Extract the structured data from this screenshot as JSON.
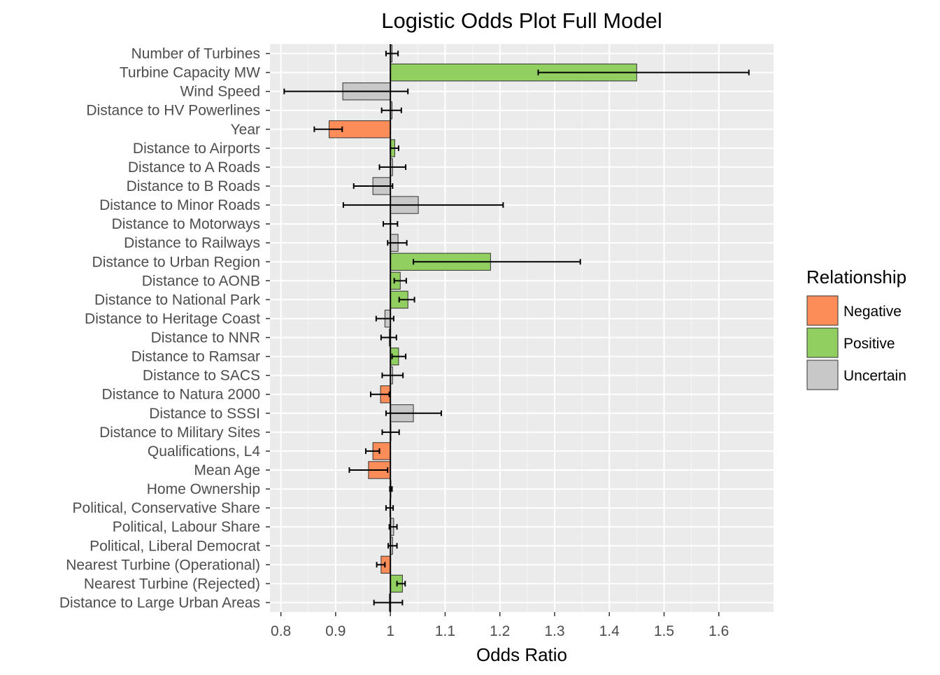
{
  "chart_data": {
    "type": "bar",
    "title": "Logistic Odds Plot Full Model",
    "xlabel": "Odds Ratio",
    "ylabel": "",
    "xlim": [
      0.78,
      1.7
    ],
    "xticks": [
      "0.8",
      "0.9",
      "1",
      "1.1",
      "1.2",
      "1.3",
      "1.4",
      "1.5",
      "1.6"
    ],
    "xtick_values": [
      0.8,
      0.9,
      1.0,
      1.1,
      1.2,
      1.3,
      1.4,
      1.5,
      1.6
    ],
    "baseline": 1.0,
    "grid": true,
    "legend": {
      "title": "Relationship",
      "position": "right",
      "entries": [
        {
          "label": "Negative",
          "color": "#fc8d59"
        },
        {
          "label": "Positive",
          "color": "#91cf60"
        },
        {
          "label": "Uncertain",
          "color": "#c8c8c8"
        }
      ]
    },
    "categories": [
      "Number of Turbines",
      "Turbine Capacity MW",
      "Wind Speed",
      "Distance to HV Powerlines",
      "Year",
      "Distance to Airports",
      "Distance to A Roads",
      "Distance to B Roads",
      "Distance to Minor Roads",
      "Distance to Motorways",
      "Distance to Railways",
      "Distance to  Urban Region",
      "Distance to AONB",
      "Distance to National Park",
      "Distance to Heritage Coast",
      "Distance to NNR",
      "Distance to Ramsar",
      "Distance to SACS",
      "Distance to Natura 2000",
      "Distance to SSSI",
      "Distance to Military Sites",
      "Qualifications, L4",
      "Mean Age ",
      "Home Ownership",
      "Political, Conservative Share",
      "Political, Labour Share",
      "Political, Liberal Democrat",
      "Nearest Turbine (Operational)",
      "Nearest Turbine (Rejected)",
      "Distance to  Large Urban Areas"
    ],
    "values": [
      1.003,
      1.45,
      0.913,
      1.003,
      0.888,
      1.008,
      1.004,
      0.968,
      1.051,
      1.0,
      1.014,
      1.183,
      1.018,
      1.032,
      0.99,
      0.998,
      1.015,
      1.004,
      0.982,
      1.042,
      1.001,
      0.968,
      0.96,
      1.001,
      0.999,
      1.006,
      1.004,
      0.983,
      1.022,
      0.998
    ],
    "lower": [
      0.992,
      1.27,
      0.806,
      0.984,
      0.861,
      1.0,
      0.98,
      0.933,
      0.914,
      0.987,
      0.995,
      1.042,
      1.007,
      1.016,
      0.974,
      0.983,
      1.003,
      0.985,
      0.964,
      0.992,
      0.985,
      0.955,
      0.925,
      0.999,
      0.992,
      0.998,
      0.996,
      0.975,
      1.012,
      0.97
    ],
    "upper": [
      1.014,
      1.655,
      1.032,
      1.02,
      0.912,
      1.015,
      1.028,
      1.004,
      1.206,
      1.013,
      1.03,
      1.347,
      1.029,
      1.044,
      1.006,
      1.011,
      1.028,
      1.023,
      0.998,
      1.093,
      1.016,
      0.98,
      0.995,
      1.003,
      1.005,
      1.012,
      1.012,
      0.99,
      1.027,
      1.022
    ],
    "relationship": [
      "Uncertain",
      "Positive",
      "Uncertain",
      "Uncertain",
      "Negative",
      "Positive",
      "Uncertain",
      "Uncertain",
      "Uncertain",
      "Uncertain",
      "Uncertain",
      "Positive",
      "Positive",
      "Positive",
      "Uncertain",
      "Uncertain",
      "Positive",
      "Uncertain",
      "Negative",
      "Uncertain",
      "Uncertain",
      "Negative",
      "Negative",
      "Uncertain",
      "Uncertain",
      "Uncertain",
      "Uncertain",
      "Negative",
      "Positive",
      "Uncertain"
    ]
  }
}
